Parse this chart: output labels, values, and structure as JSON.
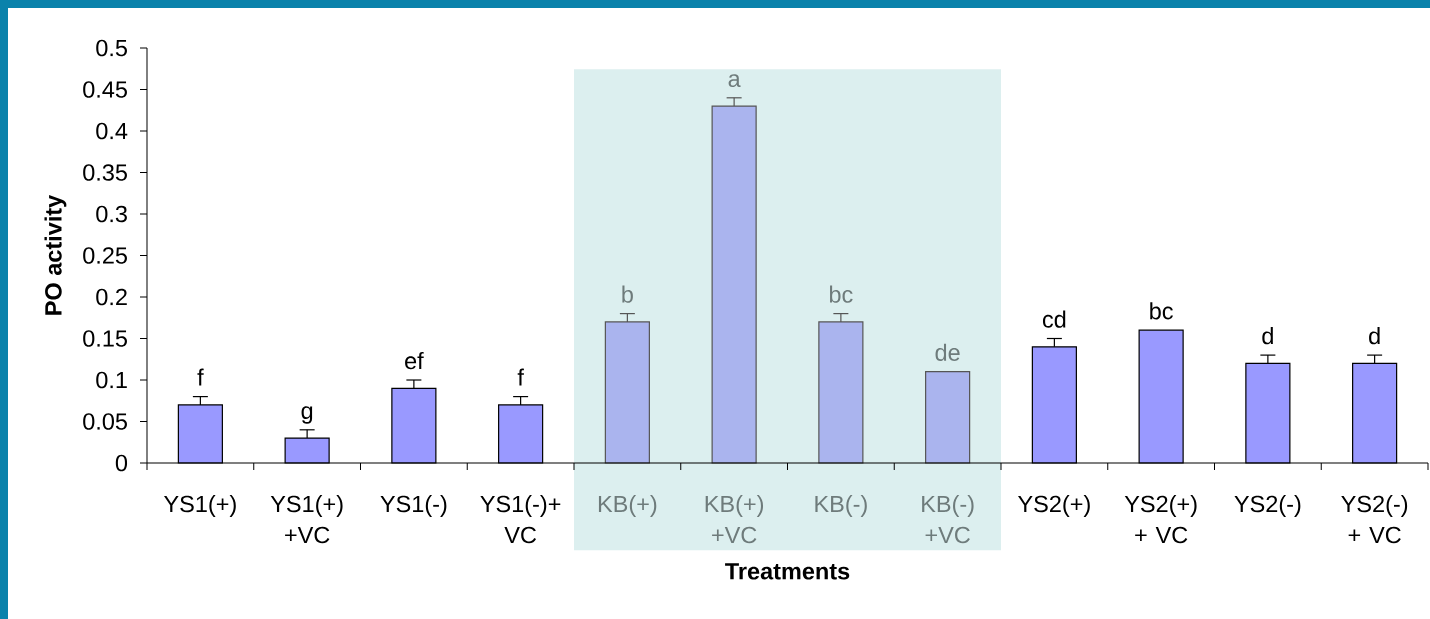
{
  "chart_data": {
    "type": "bar",
    "xlabel": "Treatments",
    "ylabel": "PO activity",
    "categories": [
      "YS1(+)",
      "YS1(+) +VC",
      "YS1(-)",
      "YS1(-)+ VC",
      "KB(+)",
      "KB(+) +VC",
      "KB(-)",
      "KB(-) +VC",
      "YS2(+)",
      "YS2(+) + VC",
      "YS2(-)",
      "YS2(-) + VC"
    ],
    "values": [
      0.07,
      0.03,
      0.09,
      0.07,
      0.17,
      0.43,
      0.17,
      0.11,
      0.14,
      0.16,
      0.12,
      0.12
    ],
    "errors": [
      [
        0.07,
        0.08
      ],
      [
        0.03,
        0.04
      ],
      [
        0.09,
        0.1
      ],
      [
        0.07,
        0.08
      ],
      [
        0.17,
        0.18
      ],
      [
        0.43,
        0.44
      ],
      [
        0.17,
        0.18
      ],
      null,
      [
        0.14,
        0.15
      ],
      null,
      [
        0.12,
        0.13
      ],
      [
        0.12,
        0.13
      ]
    ],
    "colors": [
      "#9999ff",
      "#9999ff",
      "#9999ff",
      "#9999ff",
      "#aab4ee",
      "#aab4ee",
      "#aab4ee",
      "#aab4ee",
      "#9999ff",
      "#9999ff",
      "#9999ff",
      "#9999ff"
    ],
    "ylim": [
      0,
      0.5
    ],
    "yticks": [
      0,
      0.05,
      0.1,
      0.15,
      0.2,
      0.25,
      0.3,
      0.35,
      0.4,
      0.45,
      0.5
    ],
    "annotations": [
      {
        "text": "f",
        "x": "YS1(+)",
        "y": 0.07
      },
      {
        "text": "g",
        "x": "YS1(+) +VC",
        "y": 0.03
      },
      {
        "text": "ef",
        "x": "YS1(-)",
        "y": 0.09
      },
      {
        "text": "f",
        "x": "YS1(-)+ VC",
        "y": 0.07
      },
      {
        "text": "b",
        "x": "KB(+)",
        "y": 0.17
      },
      {
        "text": "a",
        "x": "KB(+) +VC",
        "y": 0.43
      },
      {
        "text": "bc",
        "x": "KB(-)",
        "y": 0.17
      },
      {
        "text": "de",
        "x": "KB(-) +VC",
        "y": 0.11
      },
      {
        "text": "cd",
        "x": "YS2(+)",
        "y": 0.14
      },
      {
        "text": "bc",
        "x": "YS2(+) + VC",
        "y": 0.16
      },
      {
        "text": "d",
        "x": "YS2(-)",
        "y": 0.12
      },
      {
        "text": "d",
        "x": "YS2(-) + VC",
        "y": 0.12
      }
    ],
    "bands": [
      {
        "axis": "x",
        "from": "KB(+)",
        "to": "KB(-) +VC",
        "color": "#dcefef"
      }
    ]
  }
}
